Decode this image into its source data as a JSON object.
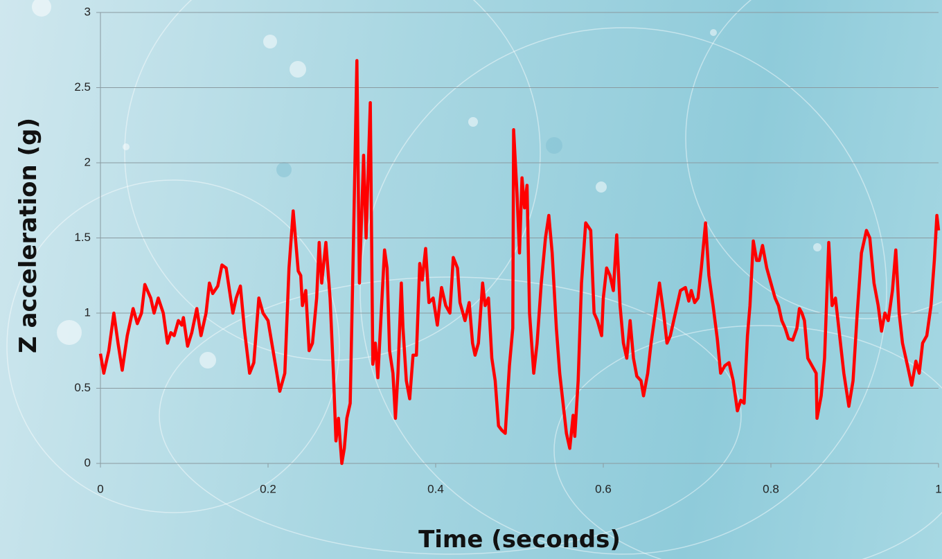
{
  "chart_data": {
    "type": "line",
    "x_label": "Time (seconds)",
    "y_label": "Z acceleration (g)",
    "x": [
      0,
      0.004,
      0.01,
      0.016,
      0.021,
      0.026,
      0.032,
      0.039,
      0.044,
      0.049,
      0.053,
      0.06,
      0.064,
      0.069,
      0.075,
      0.08,
      0.084,
      0.088,
      0.093,
      0.097,
      0.099,
      0.104,
      0.109,
      0.115,
      0.12,
      0.126,
      0.13,
      0.134,
      0.14,
      0.145,
      0.15,
      0.158,
      0.162,
      0.167,
      0.172,
      0.178,
      0.183,
      0.189,
      0.194,
      0.2,
      0.206,
      0.214,
      0.22,
      0.225,
      0.23,
      0.236,
      0.239,
      0.241,
      0.245,
      0.249,
      0.253,
      0.258,
      0.261,
      0.264,
      0.269,
      0.274,
      0.278,
      0.281,
      0.284,
      0.288,
      0.291,
      0.294,
      0.298,
      0.302,
      0.306,
      0.309,
      0.314,
      0.317,
      0.322,
      0.325,
      0.328,
      0.331,
      0.335,
      0.339,
      0.342,
      0.345,
      0.349,
      0.352,
      0.355,
      0.359,
      0.361,
      0.365,
      0.369,
      0.373,
      0.377,
      0.381,
      0.384,
      0.388,
      0.392,
      0.397,
      0.402,
      0.407,
      0.412,
      0.417,
      0.421,
      0.426,
      0.429,
      0.435,
      0.44,
      0.444,
      0.447,
      0.451,
      0.456,
      0.459,
      0.463,
      0.467,
      0.471,
      0.475,
      0.479,
      0.483,
      0.488,
      0.492,
      0.493,
      0.497,
      0.5,
      0.503,
      0.506,
      0.509,
      0.512,
      0.517,
      0.521,
      0.526,
      0.531,
      0.535,
      0.539,
      0.544,
      0.548,
      0.552,
      0.556,
      0.56,
      0.564,
      0.566,
      0.57,
      0.574,
      0.579,
      0.585,
      0.589,
      0.593,
      0.598,
      0.6,
      0.604,
      0.608,
      0.612,
      0.616,
      0.62,
      0.624,
      0.628,
      0.632,
      0.636,
      0.64,
      0.645,
      0.648,
      0.653,
      0.657,
      0.662,
      0.667,
      0.672,
      0.676,
      0.68,
      0.686,
      0.692,
      0.698,
      0.702,
      0.705,
      0.709,
      0.713,
      0.717,
      0.722,
      0.726,
      0.731,
      0.736,
      0.74,
      0.745,
      0.75,
      0.755,
      0.76,
      0.764,
      0.768,
      0.772,
      0.775,
      0.779,
      0.783,
      0.786,
      0.79,
      0.795,
      0.8,
      0.805,
      0.809,
      0.813,
      0.817,
      0.821,
      0.826,
      0.831,
      0.834,
      0.837,
      0.84,
      0.844,
      0.849,
      0.854,
      0.855,
      0.86,
      0.864,
      0.869,
      0.873,
      0.877,
      0.881,
      0.887,
      0.893,
      0.898,
      0.903,
      0.908,
      0.914,
      0.918,
      0.923,
      0.928,
      0.932,
      0.936,
      0.94,
      0.945,
      0.949,
      0.953,
      0.957,
      0.963,
      0.968,
      0.973,
      0.977,
      0.981,
      0.986,
      0.991,
      0.995,
      0.998,
      1
    ],
    "values": [
      0.73,
      0.6,
      0.75,
      1.0,
      0.8,
      0.62,
      0.85,
      1.03,
      0.93,
      1.0,
      1.19,
      1.1,
      1.0,
      1.1,
      1.0,
      0.8,
      0.87,
      0.85,
      0.95,
      0.92,
      0.97,
      0.78,
      0.87,
      1.03,
      0.85,
      1.0,
      1.2,
      1.13,
      1.18,
      1.32,
      1.3,
      1.0,
      1.1,
      1.18,
      0.88,
      0.6,
      0.67,
      1.1,
      1.0,
      0.95,
      0.75,
      0.48,
      0.6,
      1.3,
      1.68,
      1.28,
      1.25,
      1.05,
      1.15,
      0.75,
      0.8,
      1.1,
      1.47,
      1.2,
      1.47,
      1.1,
      0.6,
      0.15,
      0.3,
      0.0,
      0.1,
      0.3,
      0.4,
      1.5,
      2.68,
      1.2,
      2.05,
      1.5,
      2.4,
      0.66,
      0.8,
      0.57,
      1.0,
      1.42,
      1.3,
      0.75,
      0.6,
      0.3,
      0.6,
      1.2,
      0.9,
      0.55,
      0.43,
      0.72,
      0.72,
      1.33,
      1.22,
      1.43,
      1.07,
      1.1,
      0.92,
      1.17,
      1.05,
      1.0,
      1.37,
      1.3,
      1.07,
      0.95,
      1.07,
      0.8,
      0.72,
      0.8,
      1.2,
      1.05,
      1.1,
      0.7,
      0.55,
      0.25,
      0.22,
      0.2,
      0.65,
      0.9,
      2.22,
      1.8,
      1.4,
      1.9,
      1.7,
      1.85,
      1.0,
      0.6,
      0.8,
      1.2,
      1.5,
      1.65,
      1.4,
      0.9,
      0.6,
      0.4,
      0.2,
      0.1,
      0.32,
      0.18,
      0.55,
      1.2,
      1.6,
      1.55,
      1.0,
      0.95,
      0.85,
      1.1,
      1.3,
      1.25,
      1.15,
      1.52,
      1.05,
      0.8,
      0.7,
      0.95,
      0.7,
      0.58,
      0.55,
      0.45,
      0.6,
      0.8,
      1.0,
      1.2,
      1.0,
      0.8,
      0.85,
      1.0,
      1.15,
      1.17,
      1.08,
      1.15,
      1.07,
      1.1,
      1.3,
      1.6,
      1.25,
      1.05,
      0.83,
      0.6,
      0.65,
      0.67,
      0.55,
      0.35,
      0.42,
      0.4,
      0.85,
      1.05,
      1.48,
      1.35,
      1.35,
      1.45,
      1.3,
      1.2,
      1.1,
      1.05,
      0.95,
      0.9,
      0.83,
      0.82,
      0.9,
      1.03,
      1.0,
      0.95,
      0.7,
      0.65,
      0.6,
      0.3,
      0.45,
      0.7,
      1.47,
      1.05,
      1.1,
      0.9,
      0.6,
      0.38,
      0.55,
      1.0,
      1.4,
      1.55,
      1.5,
      1.2,
      1.05,
      0.88,
      1.0,
      0.95,
      1.15,
      1.42,
      1.0,
      0.8,
      0.65,
      0.52,
      0.68,
      0.6,
      0.8,
      0.85,
      1.05,
      1.35,
      1.65,
      1.55
    ],
    "color": "#ff0000",
    "xlim": [
      0,
      1
    ],
    "xticks": [
      0,
      0.2,
      0.4,
      0.6,
      0.8,
      1
    ],
    "ylim": [
      0,
      3
    ],
    "yticks": [
      0,
      0.5,
      1,
      1.5,
      2,
      2.5,
      3
    ],
    "grid": true
  }
}
